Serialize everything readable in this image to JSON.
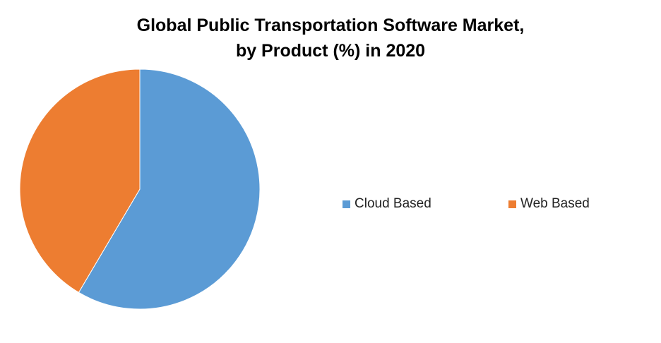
{
  "chart_data": {
    "type": "pie",
    "title_line1": "Global Public Transportation Software Market,",
    "title_line2": "by Product (%) in 2020",
    "slices": [
      {
        "label": "Cloud Based",
        "value": 58.5,
        "color": "#5B9BD5"
      },
      {
        "label": "Web Based",
        "value": 41.5,
        "color": "#ED7D31"
      }
    ],
    "legend_position": "right"
  }
}
